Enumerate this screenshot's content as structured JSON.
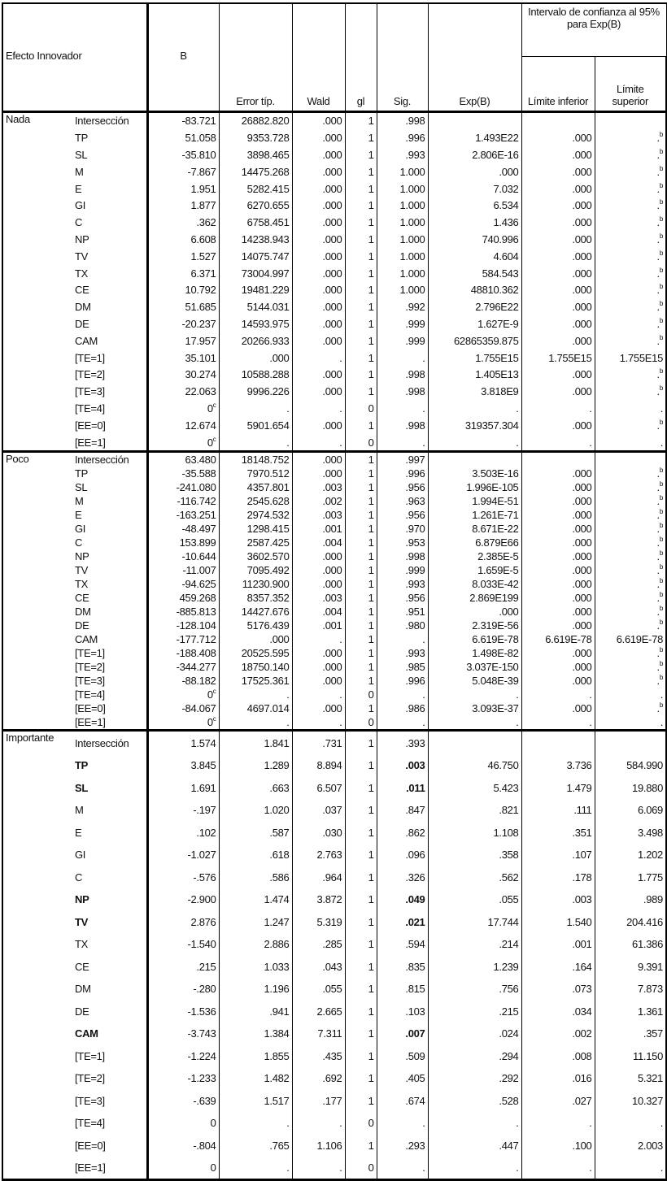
{
  "header": {
    "effect": "Efecto Innovador",
    "b": "B",
    "se": "Error típ.",
    "wald": "Wald",
    "gl": "gl",
    "sig": "Sig.",
    "exp": "Exp(B)",
    "ci": "Intervalo de confianza al 95% para Exp(B)",
    "lo": "Límite inferior",
    "hi": "Límite superior"
  },
  "sections": [
    {
      "name": "Nada",
      "cls": "nada",
      "rows": [
        {
          "v": "Intersección",
          "b": "-83.721",
          "se": "26882.820",
          "w": ".000",
          "gl": "1",
          "sig": ".998",
          "exp": "",
          "lo": "",
          "hi": ""
        },
        {
          "v": "TP",
          "b": "51.058",
          "se": "9353.728",
          "w": ".000",
          "gl": "1",
          "sig": ".996",
          "exp": "1.493E22",
          "lo": ".000",
          "hi": ".",
          "hin": "b"
        },
        {
          "v": "SL",
          "b": "-35.810",
          "se": "3898.465",
          "w": ".000",
          "gl": "1",
          "sig": ".993",
          "exp": "2.806E-16",
          "lo": ".000",
          "hi": ".",
          "hin": "b"
        },
        {
          "v": "M",
          "b": "-7.867",
          "se": "14475.268",
          "w": ".000",
          "gl": "1",
          "sig": "1.000",
          "exp": ".000",
          "lo": ".000",
          "hi": ".",
          "hin": "b"
        },
        {
          "v": "E",
          "b": "1.951",
          "se": "5282.415",
          "w": ".000",
          "gl": "1",
          "sig": "1.000",
          "exp": "7.032",
          "lo": ".000",
          "hi": ".",
          "hin": "b"
        },
        {
          "v": "GI",
          "b": "1.877",
          "se": "6270.655",
          "w": ".000",
          "gl": "1",
          "sig": "1.000",
          "exp": "6.534",
          "lo": ".000",
          "hi": ".",
          "hin": "b"
        },
        {
          "v": "C",
          "b": ".362",
          "se": "6758.451",
          "w": ".000",
          "gl": "1",
          "sig": "1.000",
          "exp": "1.436",
          "lo": ".000",
          "hi": ".",
          "hin": "b"
        },
        {
          "v": "NP",
          "b": "6.608",
          "se": "14238.943",
          "w": ".000",
          "gl": "1",
          "sig": "1.000",
          "exp": "740.996",
          "lo": ".000",
          "hi": ".",
          "hin": "b"
        },
        {
          "v": "TV",
          "b": "1.527",
          "se": "14075.747",
          "w": ".000",
          "gl": "1",
          "sig": "1.000",
          "exp": "4.604",
          "lo": ".000",
          "hi": ".",
          "hin": "b"
        },
        {
          "v": "TX",
          "b": "6.371",
          "se": "73004.997",
          "w": ".000",
          "gl": "1",
          "sig": "1.000",
          "exp": "584.543",
          "lo": ".000",
          "hi": ".",
          "hin": "b"
        },
        {
          "v": "CE",
          "b": "10.792",
          "se": "19481.229",
          "w": ".000",
          "gl": "1",
          "sig": "1.000",
          "exp": "48810.362",
          "lo": ".000",
          "hi": ".",
          "hin": "b"
        },
        {
          "v": "DM",
          "b": "51.685",
          "se": "5144.031",
          "w": ".000",
          "gl": "1",
          "sig": ".992",
          "exp": "2.796E22",
          "lo": ".000",
          "hi": ".",
          "hin": "b"
        },
        {
          "v": "DE",
          "b": "-20.237",
          "se": "14593.975",
          "w": ".000",
          "gl": "1",
          "sig": ".999",
          "exp": "1.627E-9",
          "lo": ".000",
          "hi": ".",
          "hin": "b"
        },
        {
          "v": "CAM",
          "b": "17.957",
          "se": "20266.933",
          "w": ".000",
          "gl": "1",
          "sig": ".999",
          "exp": "62865359.875",
          "lo": ".000",
          "hi": ".",
          "hin": "b"
        },
        {
          "v": "[TE=1]",
          "b": "35.101",
          "se": ".000",
          "w": ".",
          "gl": "1",
          "sig": ".",
          "exp": "1.755E15",
          "lo": "1.755E15",
          "hi": "1.755E15"
        },
        {
          "v": "[TE=2]",
          "b": "30.274",
          "se": "10588.288",
          "w": ".000",
          "gl": "1",
          "sig": ".998",
          "exp": "1.405E13",
          "lo": ".000",
          "hi": ".",
          "hin": "b"
        },
        {
          "v": "[TE=3]",
          "b": "22.063",
          "se": "9996.226",
          "w": ".000",
          "gl": "1",
          "sig": ".998",
          "exp": "3.818E9",
          "lo": ".000",
          "hi": ".",
          "hin": "b"
        },
        {
          "v": "[TE=4]",
          "b": "0",
          "bn": "c",
          "se": ".",
          "w": ".",
          "gl": "0",
          "sig": ".",
          "exp": ".",
          "lo": ".",
          "hi": "."
        },
        {
          "v": "[EE=0]",
          "b": "12.674",
          "se": "5901.654",
          "w": ".000",
          "gl": "1",
          "sig": ".998",
          "exp": "319357.304",
          "lo": ".000",
          "hi": ".",
          "hin": "b"
        },
        {
          "v": "[EE=1]",
          "b": "0",
          "bn": "c",
          "se": ".",
          "w": ".",
          "gl": "0",
          "sig": ".",
          "exp": ".",
          "lo": ".",
          "hi": "."
        }
      ]
    },
    {
      "name": "Poco",
      "cls": "poco",
      "rows": [
        {
          "v": "Intersección",
          "b": "63.480",
          "se": "18148.752",
          "w": ".000",
          "gl": "1",
          "sig": ".997",
          "exp": "",
          "lo": "",
          "hi": ""
        },
        {
          "v": "TP",
          "b": "-35.588",
          "se": "7970.512",
          "w": ".000",
          "gl": "1",
          "sig": ".996",
          "exp": "3.503E-16",
          "lo": ".000",
          "hi": ".",
          "hin": "b"
        },
        {
          "v": "SL",
          "b": "-241.080",
          "se": "4357.801",
          "w": ".003",
          "gl": "1",
          "sig": ".956",
          "exp": "1.996E-105",
          "lo": ".000",
          "hi": ".",
          "hin": "b"
        },
        {
          "v": "M",
          "b": "-116.742",
          "se": "2545.628",
          "w": ".002",
          "gl": "1",
          "sig": ".963",
          "exp": "1.994E-51",
          "lo": ".000",
          "hi": ".",
          "hin": "b"
        },
        {
          "v": "E",
          "b": "-163.251",
          "se": "2974.532",
          "w": ".003",
          "gl": "1",
          "sig": ".956",
          "exp": "1.261E-71",
          "lo": ".000",
          "hi": ".",
          "hin": "b"
        },
        {
          "v": "GI",
          "b": "-48.497",
          "se": "1298.415",
          "w": ".001",
          "gl": "1",
          "sig": ".970",
          "exp": "8.671E-22",
          "lo": ".000",
          "hi": ".",
          "hin": "b"
        },
        {
          "v": "C",
          "b": "153.899",
          "se": "2587.425",
          "w": ".004",
          "gl": "1",
          "sig": ".953",
          "exp": "6.879E66",
          "lo": ".000",
          "hi": ".",
          "hin": "b"
        },
        {
          "v": "NP",
          "b": "-10.644",
          "se": "3602.570",
          "w": ".000",
          "gl": "1",
          "sig": ".998",
          "exp": "2.385E-5",
          "lo": ".000",
          "hi": ".",
          "hin": "b"
        },
        {
          "v": "TV",
          "b": "-11.007",
          "se": "7095.492",
          "w": ".000",
          "gl": "1",
          "sig": ".999",
          "exp": "1.659E-5",
          "lo": ".000",
          "hi": ".",
          "hin": "b"
        },
        {
          "v": "TX",
          "b": "-94.625",
          "se": "11230.900",
          "w": ".000",
          "gl": "1",
          "sig": ".993",
          "exp": "8.033E-42",
          "lo": ".000",
          "hi": ".",
          "hin": "b"
        },
        {
          "v": "CE",
          "b": "459.268",
          "se": "8357.352",
          "w": ".003",
          "gl": "1",
          "sig": ".956",
          "exp": "2.869E199",
          "lo": ".000",
          "hi": ".",
          "hin": "b"
        },
        {
          "v": "DM",
          "b": "-885.813",
          "se": "14427.676",
          "w": ".004",
          "gl": "1",
          "sig": ".951",
          "exp": ".000",
          "lo": ".000",
          "hi": ".",
          "hin": "b"
        },
        {
          "v": "DE",
          "b": "-128.104",
          "se": "5176.439",
          "w": ".001",
          "gl": "1",
          "sig": ".980",
          "exp": "2.319E-56",
          "lo": ".000",
          "hi": ".",
          "hin": "b"
        },
        {
          "v": "CAM",
          "b": "-177.712",
          "se": ".000",
          "w": ".",
          "gl": "1",
          "sig": ".",
          "exp": "6.619E-78",
          "lo": "6.619E-78",
          "hi": "6.619E-78"
        },
        {
          "v": "[TE=1]",
          "b": "-188.408",
          "se": "20525.595",
          "w": ".000",
          "gl": "1",
          "sig": ".993",
          "exp": "1.498E-82",
          "lo": ".000",
          "hi": ".",
          "hin": "b"
        },
        {
          "v": "[TE=2]",
          "b": "-344.277",
          "se": "18750.140",
          "w": ".000",
          "gl": "1",
          "sig": ".985",
          "exp": "3.037E-150",
          "lo": ".000",
          "hi": ".",
          "hin": "b"
        },
        {
          "v": "[TE=3]",
          "b": "-88.182",
          "se": "17525.361",
          "w": ".000",
          "gl": "1",
          "sig": ".996",
          "exp": "5.048E-39",
          "lo": ".000",
          "hi": ".",
          "hin": "b"
        },
        {
          "v": "[TE=4]",
          "b": "0",
          "bn": "c",
          "se": ".",
          "w": ".",
          "gl": "0",
          "sig": ".",
          "exp": ".",
          "lo": ".",
          "hi": "."
        },
        {
          "v": "[EE=0]",
          "b": "-84.067",
          "se": "4697.014",
          "w": ".000",
          "gl": "1",
          "sig": ".986",
          "exp": "3.093E-37",
          "lo": ".000",
          "hi": ".",
          "hin": "b"
        },
        {
          "v": "[EE=1]",
          "b": "0",
          "bn": "c",
          "se": ".",
          "w": ".",
          "gl": "0",
          "sig": ".",
          "exp": ".",
          "lo": ".",
          "hi": "."
        }
      ]
    },
    {
      "name": "Importante",
      "cls": "imp",
      "rows": [
        {
          "v": "Intersección",
          "b": "1.574",
          "se": "1.841",
          "w": ".731",
          "gl": "1",
          "sig": ".393",
          "exp": "",
          "lo": "",
          "hi": ""
        },
        {
          "v": "TP",
          "bold": true,
          "b": "3.845",
          "se": "1.289",
          "w": "8.894",
          "gl": "1",
          "sig": ".003",
          "exp": "46.750",
          "lo": "3.736",
          "hi": "584.990"
        },
        {
          "v": "SL",
          "bold": true,
          "b": "1.691",
          "se": ".663",
          "w": "6.507",
          "gl": "1",
          "sig": ".011",
          "exp": "5.423",
          "lo": "1.479",
          "hi": "19.880"
        },
        {
          "v": "M",
          "b": "-.197",
          "se": "1.020",
          "w": ".037",
          "gl": "1",
          "sig": ".847",
          "exp": ".821",
          "lo": ".111",
          "hi": "6.069"
        },
        {
          "v": "E",
          "b": ".102",
          "se": ".587",
          "w": ".030",
          "gl": "1",
          "sig": ".862",
          "exp": "1.108",
          "lo": ".351",
          "hi": "3.498"
        },
        {
          "v": "GI",
          "b": "-1.027",
          "se": ".618",
          "w": "2.763",
          "gl": "1",
          "sig": ".096",
          "exp": ".358",
          "lo": ".107",
          "hi": "1.202"
        },
        {
          "v": "C",
          "b": "-.576",
          "se": ".586",
          "w": ".964",
          "gl": "1",
          "sig": ".326",
          "exp": ".562",
          "lo": ".178",
          "hi": "1.775"
        },
        {
          "v": "NP",
          "bold": true,
          "b": "-2.900",
          "se": "1.474",
          "w": "3.872",
          "gl": "1",
          "sig": ".049",
          "exp": ".055",
          "lo": ".003",
          "hi": ".989"
        },
        {
          "v": "TV",
          "bold": true,
          "b": "2.876",
          "se": "1.247",
          "w": "5.319",
          "gl": "1",
          "sig": ".021",
          "exp": "17.744",
          "lo": "1.540",
          "hi": "204.416"
        },
        {
          "v": "TX",
          "b": "-1.540",
          "se": "2.886",
          "w": ".285",
          "gl": "1",
          "sig": ".594",
          "exp": ".214",
          "lo": ".001",
          "hi": "61.386"
        },
        {
          "v": "CE",
          "b": ".215",
          "se": "1.033",
          "w": ".043",
          "gl": "1",
          "sig": ".835",
          "exp": "1.239",
          "lo": ".164",
          "hi": "9.391"
        },
        {
          "v": "DM",
          "b": "-.280",
          "se": "1.196",
          "w": ".055",
          "gl": "1",
          "sig": ".815",
          "exp": ".756",
          "lo": ".073",
          "hi": "7.873"
        },
        {
          "v": "DE",
          "b": "-1.536",
          "se": ".941",
          "w": "2.665",
          "gl": "1",
          "sig": ".103",
          "exp": ".215",
          "lo": ".034",
          "hi": "1.361"
        },
        {
          "v": "CAM",
          "bold": true,
          "b": "-3.743",
          "se": "1.384",
          "w": "7.311",
          "gl": "1",
          "sig": ".007",
          "exp": ".024",
          "lo": ".002",
          "hi": ".357"
        },
        {
          "v": "[TE=1]",
          "b": "-1.224",
          "se": "1.855",
          "w": ".435",
          "gl": "1",
          "sig": ".509",
          "exp": ".294",
          "lo": ".008",
          "hi": "11.150"
        },
        {
          "v": "[TE=2]",
          "b": "-1.233",
          "se": "1.482",
          "w": ".692",
          "gl": "1",
          "sig": ".405",
          "exp": ".292",
          "lo": ".016",
          "hi": "5.321"
        },
        {
          "v": "[TE=3]",
          "b": "-.639",
          "se": "1.517",
          "w": ".177",
          "gl": "1",
          "sig": ".674",
          "exp": ".528",
          "lo": ".027",
          "hi": "10.327"
        },
        {
          "v": "[TE=4]",
          "b": "0",
          "se": ".",
          "w": ".",
          "gl": "0",
          "sig": ".",
          "exp": ".",
          "lo": ".",
          "hi": "."
        },
        {
          "v": "[EE=0]",
          "b": "-.804",
          "se": ".765",
          "w": "1.106",
          "gl": "1",
          "sig": ".293",
          "exp": ".447",
          "lo": ".100",
          "hi": "2.003"
        },
        {
          "v": "[EE=1]",
          "b": "0",
          "se": ".",
          "w": ".",
          "gl": "0",
          "sig": ".",
          "exp": ".",
          "lo": ".",
          "hi": "."
        }
      ]
    }
  ]
}
